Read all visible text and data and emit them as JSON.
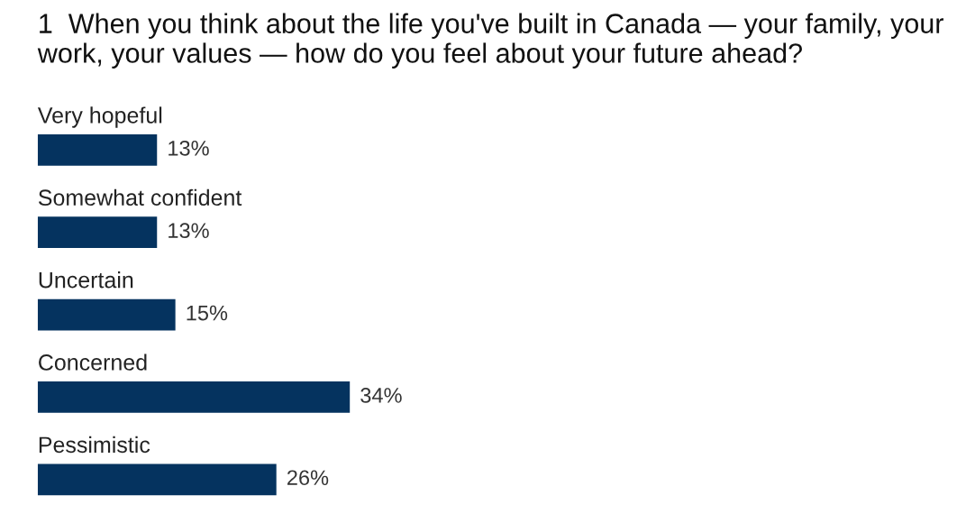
{
  "chart_data": {
    "type": "bar",
    "orientation": "horizontal",
    "title": "1  When you think about the life you've built in Canada — your family, your work, your values — how do you feel about your future ahead?",
    "categories": [
      "Very hopeful",
      "Somewhat confident",
      "Uncertain",
      "Concerned",
      "Pessimistic"
    ],
    "series": [
      {
        "color": "#05335f",
        "values": [
          13,
          13,
          15,
          34,
          26
        ],
        "value_labels": [
          "13%",
          "13%",
          "15%",
          "34%",
          "26%"
        ]
      }
    ]
  }
}
